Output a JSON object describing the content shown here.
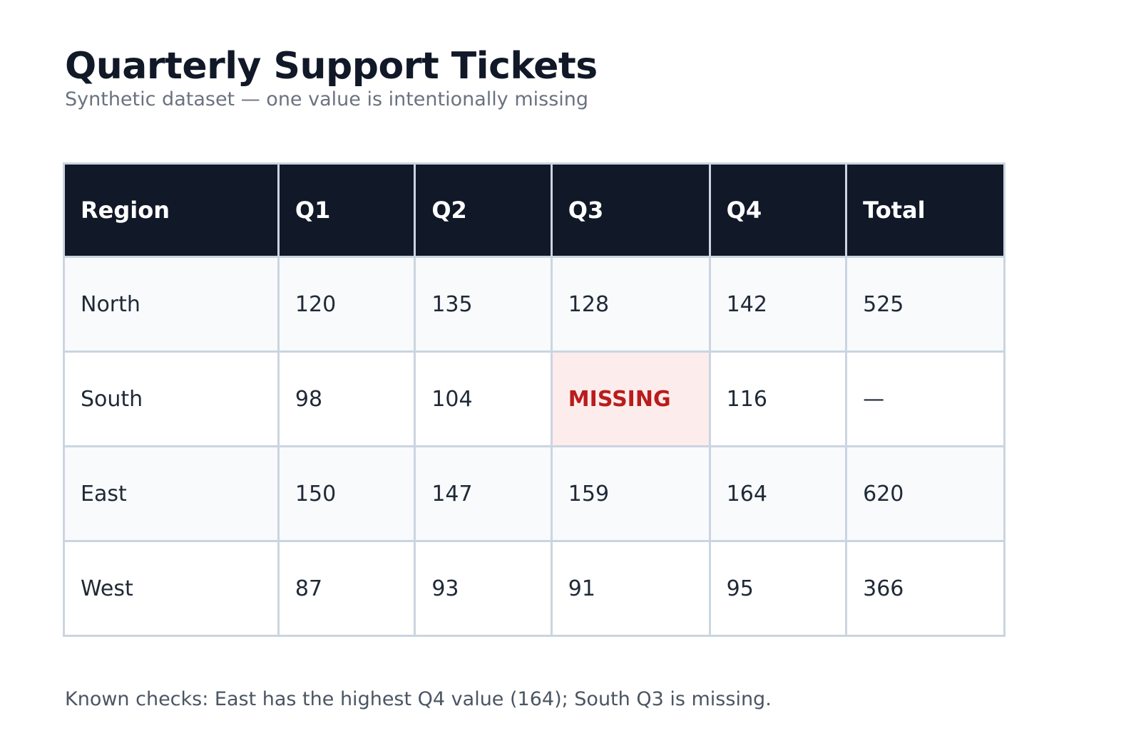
{
  "header": {
    "title": "Quarterly Support Tickets",
    "subtitle": "Synthetic dataset — one value is intentionally missing"
  },
  "table": {
    "columns": [
      "Region",
      "Q1",
      "Q2",
      "Q3",
      "Q4",
      "Total"
    ],
    "rows": [
      {
        "region": "North",
        "q1": "120",
        "q2": "135",
        "q3": "128",
        "q4": "142",
        "total": "525"
      },
      {
        "region": "South",
        "q1": "98",
        "q2": "104",
        "q3": "MISSING",
        "q4": "116",
        "total": "—"
      },
      {
        "region": "East",
        "q1": "150",
        "q2": "147",
        "q3": "159",
        "q4": "164",
        "total": "620"
      },
      {
        "region": "West",
        "q1": "87",
        "q2": "93",
        "q3": "91",
        "q4": "95",
        "total": "366"
      }
    ]
  },
  "footer": {
    "note": "Known checks: East has the highest Q4 value (164); South Q3 is missing."
  },
  "colors": {
    "header_bg": "#111827",
    "missing_bg": "#fdecec",
    "missing_text": "#b91c1c",
    "border": "#cbd5e1"
  },
  "chart_data": {
    "type": "table",
    "title": "Quarterly Support Tickets",
    "subtitle": "Synthetic dataset — one value is intentionally missing",
    "columns": [
      "Region",
      "Q1",
      "Q2",
      "Q3",
      "Q4",
      "Total"
    ],
    "categories": [
      "North",
      "South",
      "East",
      "West"
    ],
    "series": [
      {
        "name": "Q1",
        "values": [
          120,
          98,
          150,
          87
        ]
      },
      {
        "name": "Q2",
        "values": [
          135,
          104,
          147,
          93
        ]
      },
      {
        "name": "Q3",
        "values": [
          128,
          null,
          159,
          91
        ]
      },
      {
        "name": "Q4",
        "values": [
          142,
          116,
          164,
          95
        ]
      },
      {
        "name": "Total",
        "values": [
          525,
          null,
          620,
          366
        ]
      }
    ]
  }
}
